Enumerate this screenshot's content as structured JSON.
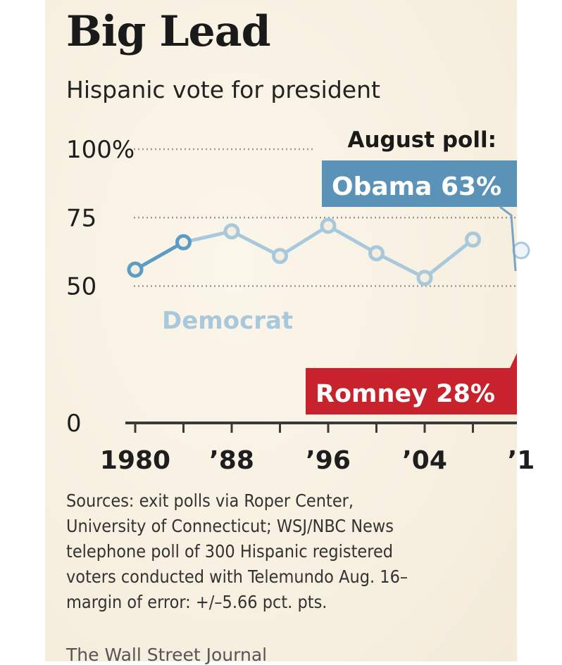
{
  "title": "Big Lead",
  "subtitle": "Hispanic vote for president",
  "chart_data": {
    "type": "line",
    "title": "Big Lead",
    "subtitle": "Hispanic vote for president",
    "y_tick_labels": [
      "100%",
      "75",
      "50",
      "0"
    ],
    "y_ticks": [
      100,
      75,
      50,
      0
    ],
    "ylim": [
      0,
      100
    ],
    "x_tick_labels": [
      "1980",
      "’88",
      "’96",
      "’04",
      "’1"
    ],
    "x_ticks": [
      1980,
      1988,
      1996,
      2004,
      2012
    ],
    "series": [
      {
        "name": "Democrat",
        "color": "#5b9bc4",
        "x": [
          1980,
          1984,
          1988,
          1992,
          1996,
          2000,
          2004,
          2008,
          2012
        ],
        "y": [
          56,
          66,
          70,
          61,
          72,
          62,
          53,
          67,
          63
        ]
      }
    ],
    "annotations": {
      "heading": "August poll:",
      "obama": "Obama 63%",
      "romney": "Romney 28%"
    },
    "colors": {
      "obama": "#5b93b8",
      "romney": "#c8232c",
      "line": "#a8c8dc"
    }
  },
  "sources": [
    "Sources: exit polls via Roper Center,",
    "University of Connecticut; WSJ/NBC News",
    "telephone poll of 300 Hispanic registered",
    "voters conducted with Telemundo Aug. 16–",
    "margin of error: +/–5.66 pct. pts."
  ],
  "credit": "The Wall Street Journal"
}
